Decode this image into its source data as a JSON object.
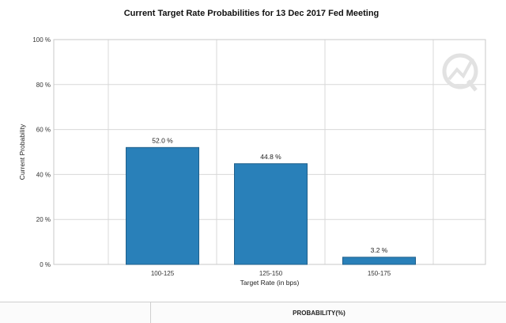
{
  "chart_data": {
    "type": "bar",
    "title": "Current Target Rate Probabilities for 13 Dec 2017 Fed Meeting",
    "xlabel": "Target Rate (in bps)",
    "ylabel": "Current Probability",
    "categories": [
      "100-125",
      "125-150",
      "150-175"
    ],
    "values": [
      52.0,
      44.8,
      3.2
    ],
    "data_labels": [
      "52.0 %",
      "44.8 %",
      "3.2 %"
    ],
    "ylim": [
      0,
      100
    ],
    "yticks": [
      0,
      20,
      40,
      60,
      80,
      100
    ],
    "ytick_labels": [
      "0 %",
      "20 %",
      "40 %",
      "60 %",
      "80 %",
      "100 %"
    ],
    "grid": true,
    "bar_color": "#2980b9",
    "watermark": "logo-watermark-icon"
  },
  "table": {
    "header_probability": "PROBABILITY(%)"
  }
}
